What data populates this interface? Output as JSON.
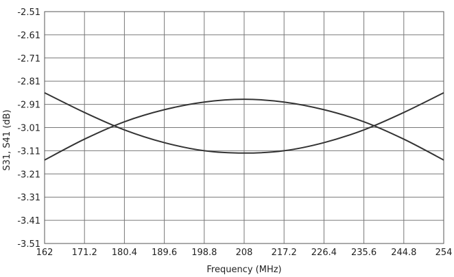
{
  "chart_data": {
    "type": "line",
    "title": "",
    "xlabel": "Frequency (MHz)",
    "ylabel": "S31, S41 (dB)",
    "xlim": [
      162,
      254
    ],
    "ylim": [
      -3.51,
      -2.51
    ],
    "x_ticks": [
      "162",
      "171.2",
      "180.4",
      "189.6",
      "198.8",
      "208",
      "217.2",
      "226.4",
      "235.6",
      "244.8",
      "254"
    ],
    "y_ticks": [
      "-2.51",
      "-2.61",
      "-2.71",
      "-2.81",
      "-2.91",
      "-3.01",
      "-3.11",
      "-3.21",
      "-3.31",
      "-3.41",
      "-3.51"
    ],
    "grid": true,
    "x": [
      162,
      171.2,
      180.4,
      189.6,
      198.8,
      208,
      217.2,
      226.4,
      235.6,
      244.8,
      254
    ],
    "series": [
      {
        "values": [
          -3.15,
          -3.06,
          -2.985,
          -2.933,
          -2.9,
          -2.888,
          -2.9,
          -2.933,
          -2.985,
          -3.06,
          -3.15
        ]
      },
      {
        "values": [
          -2.86,
          -2.945,
          -3.02,
          -3.075,
          -3.11,
          -3.12,
          -3.11,
          -3.075,
          -3.02,
          -2.945,
          -2.86
        ]
      }
    ]
  }
}
